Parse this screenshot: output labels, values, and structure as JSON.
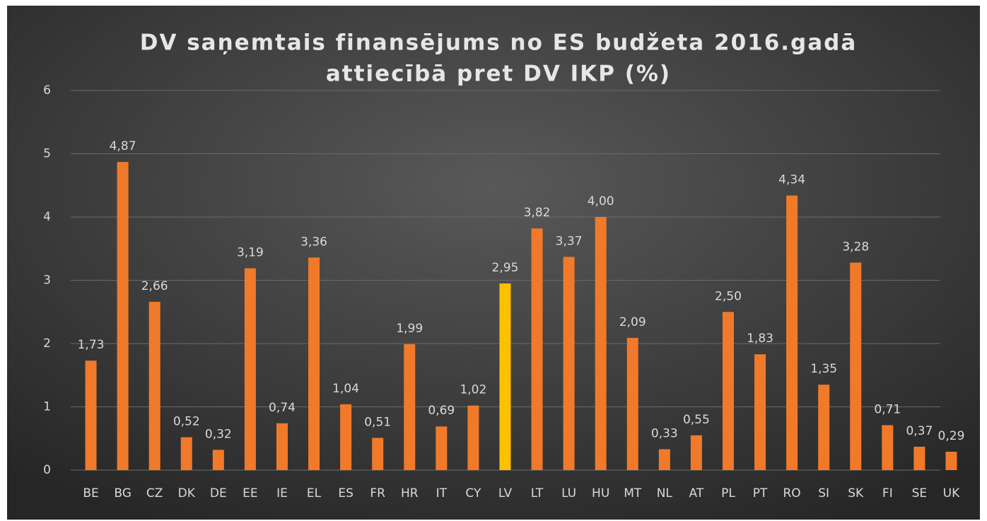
{
  "chart_data": {
    "type": "bar",
    "title": [
      "DV saņemtais finansējums no ES budžeta 2016.gadā",
      "attiecībā pret DV IKP (%)"
    ],
    "categories": [
      "BE",
      "BG",
      "CZ",
      "DK",
      "DE",
      "EE",
      "IE",
      "EL",
      "ES",
      "FR",
      "HR",
      "IT",
      "CY",
      "LV",
      "LT",
      "LU",
      "HU",
      "MT",
      "NL",
      "AT",
      "PL",
      "PT",
      "RO",
      "SI",
      "SK",
      "FI",
      "SE",
      "UK"
    ],
    "values": [
      1.73,
      4.87,
      2.66,
      0.52,
      0.32,
      3.19,
      0.74,
      3.36,
      1.04,
      0.51,
      1.99,
      0.69,
      1.02,
      2.95,
      3.82,
      3.37,
      4.0,
      2.09,
      0.33,
      0.55,
      2.5,
      1.83,
      4.34,
      1.35,
      3.28,
      0.71,
      0.37,
      0.29
    ],
    "value_labels": [
      "1,73",
      "4,87",
      "2,66",
      "0,52",
      "0,32",
      "3,19",
      "0,74",
      "3,36",
      "1,04",
      "0,51",
      "1,99",
      "0,69",
      "1,02",
      "2,95",
      "3,82",
      "3,37",
      "4,00",
      "2,09",
      "0,33",
      "0,55",
      "2,50",
      "1,83",
      "4,34",
      "1,35",
      "3,28",
      "0,71",
      "0,37",
      "0,29"
    ],
    "colors": [
      "#f07a2a",
      "#f07a2a",
      "#f07a2a",
      "#f07a2a",
      "#f07a2a",
      "#f07a2a",
      "#f07a2a",
      "#f07a2a",
      "#f07a2a",
      "#f07a2a",
      "#f07a2a",
      "#f07a2a",
      "#f07a2a",
      "#ffc000",
      "#f07a2a",
      "#f07a2a",
      "#f07a2a",
      "#f07a2a",
      "#f07a2a",
      "#f07a2a",
      "#f07a2a",
      "#f07a2a",
      "#f07a2a",
      "#f07a2a",
      "#f07a2a",
      "#f07a2a",
      "#f07a2a",
      "#f07a2a"
    ],
    "ylim": [
      0,
      6
    ],
    "yticks": [
      0,
      1,
      2,
      3,
      4,
      5,
      6
    ],
    "grid": true
  }
}
